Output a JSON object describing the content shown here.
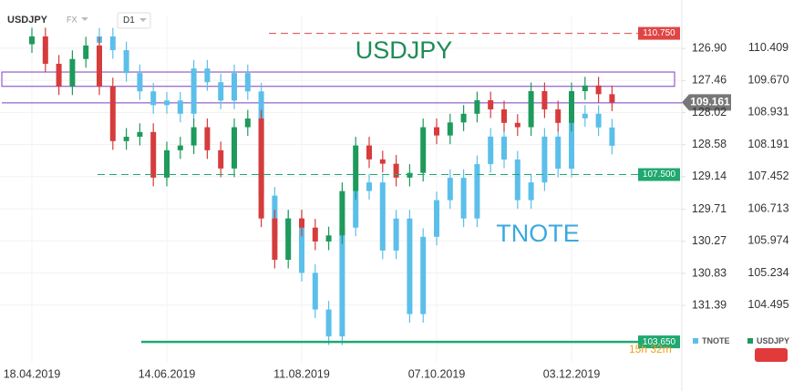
{
  "chart_data": {
    "type": "candlestick",
    "title": "USDJPY",
    "market": "FX",
    "timeframe": "D1",
    "countdown": "15h 32m",
    "categories": [
      "18.04.2019",
      null,
      null,
      null,
      null,
      null,
      null,
      null,
      null,
      null,
      "14.06.2019",
      null,
      null,
      null,
      null,
      null,
      null,
      null,
      null,
      null,
      "11.08.2019",
      null,
      null,
      null,
      null,
      null,
      null,
      null,
      null,
      null,
      "07.10.2019",
      null,
      null,
      null,
      null,
      null,
      null,
      null,
      null,
      null,
      "03.12.2019",
      null,
      null,
      null
    ],
    "ylim": [
      103.17,
      111.14
    ],
    "yticks": [
      110.409,
      {
        "value": 109.67,
        "label": "109.670"
      },
      108.931,
      108.191,
      107.452,
      106.713,
      105.974,
      105.234,
      104.495
    ],
    "y2lim": [
      132.39,
      126.34
    ],
    "y2ticks": [
      {
        "value": 126.9,
        "label": "126.90"
      },
      127.46,
      128.02,
      128.58,
      129.14,
      129.71,
      130.27,
      130.83,
      131.39
    ],
    "grid": true,
    "series": [
      {
        "name": "TNOTE",
        "axis": "y2",
        "color": "#5bbfea",
        "open": [
          null,
          null,
          null,
          null,
          null,
          126.8,
          126.69,
          126.93,
          127.33,
          127.65,
          127.89,
          127.81,
          128.04,
          127.25,
          127.49,
          127.81,
          127.33,
          127.65,
          129.47,
          130.19,
          129.87,
          130.82,
          131.46,
          131.93,
          130.03,
          129.39,
          129.24,
          130.43,
          129.87,
          131.54,
          130.19,
          129.55,
          129.16,
          129.87,
          128.92,
          128.44,
          128.84,
          129.55,
          129.24,
          128.44,
          129.0,
          128.12,
          128.04,
          128.28
        ],
        "high": [
          null,
          null,
          null,
          null,
          null,
          126.95,
          127.08,
          127.48,
          127.8,
          128.04,
          128.04,
          128.19,
          128.19,
          127.64,
          127.96,
          127.96,
          127.8,
          129.62,
          130.34,
          130.34,
          130.97,
          131.61,
          132.08,
          132.08,
          130.18,
          129.54,
          130.58,
          130.58,
          131.69,
          131.69,
          130.34,
          129.7,
          130.02,
          130.02,
          129.07,
          128.99,
          129.7,
          129.7,
          129.39,
          129.15,
          129.15,
          128.27,
          128.43,
          128.75
        ],
        "low": [
          null,
          null,
          null,
          null,
          null,
          126.54,
          126.54,
          126.78,
          127.18,
          127.5,
          127.66,
          127.66,
          127.1,
          127.1,
          127.34,
          127.18,
          127.18,
          127.5,
          129.32,
          129.72,
          129.72,
          130.67,
          131.31,
          129.88,
          129.24,
          129.09,
          129.09,
          129.72,
          129.72,
          130.04,
          129.4,
          129.01,
          129.01,
          128.77,
          128.29,
          128.29,
          128.69,
          129.09,
          128.29,
          128.29,
          127.97,
          127.89,
          127.89,
          128.13
        ],
        "close": [
          null,
          null,
          null,
          null,
          null,
          126.69,
          126.93,
          127.33,
          127.65,
          127.89,
          127.81,
          128.04,
          127.25,
          127.49,
          127.81,
          127.33,
          127.65,
          129.47,
          130.19,
          129.87,
          130.82,
          131.46,
          131.93,
          130.03,
          129.39,
          129.24,
          130.43,
          129.87,
          131.54,
          130.19,
          129.55,
          129.16,
          129.87,
          128.92,
          128.44,
          128.84,
          129.55,
          129.24,
          128.44,
          129.0,
          128.12,
          128.04,
          128.28,
          128.6
        ]
      },
      {
        "name": "USDJPY",
        "color": "#1e9a5c",
        "down_color": "#d63c3c",
        "open": [
          110.5,
          110.68,
          110.05,
          109.53,
          110.16,
          110.47,
          109.53,
          108.27,
          108.37,
          108.48,
          107.43,
          108.06,
          108.17,
          108.59,
          108.06,
          107.64,
          108.59,
          108.79,
          106.49,
          105.54,
          106.49,
          106.28,
          105.96,
          106.1,
          107.12,
          108.17,
          107.85,
          107.75,
          107.43,
          107.54,
          108.59,
          108.4,
          108.7,
          108.9,
          109.21,
          109.0,
          108.69,
          108.59,
          109.42,
          109.0,
          108.69,
          109.42,
          109.55,
          109.35
        ],
        "high": [
          110.88,
          110.88,
          110.25,
          110.36,
          110.67,
          110.67,
          109.73,
          108.57,
          108.68,
          108.68,
          108.26,
          108.37,
          108.79,
          108.79,
          108.26,
          108.79,
          108.99,
          108.99,
          106.69,
          106.69,
          106.69,
          106.48,
          106.3,
          107.32,
          108.37,
          108.37,
          108.05,
          107.95,
          107.74,
          108.79,
          108.79,
          108.9,
          109.1,
          109.41,
          109.41,
          109.2,
          108.89,
          109.62,
          109.62,
          109.2,
          109.62,
          109.75,
          109.75,
          109.55
        ],
        "low": [
          110.3,
          109.85,
          109.33,
          109.33,
          109.96,
          109.33,
          108.07,
          108.07,
          108.17,
          107.23,
          107.23,
          107.86,
          107.97,
          107.86,
          107.44,
          107.44,
          108.39,
          106.29,
          105.34,
          105.34,
          106.08,
          105.76,
          105.76,
          105.9,
          106.92,
          107.65,
          107.55,
          107.23,
          107.23,
          107.34,
          108.2,
          108.2,
          108.5,
          108.7,
          108.8,
          108.49,
          108.39,
          108.39,
          108.8,
          108.49,
          108.49,
          109.22,
          109.15,
          108.96
        ],
        "close": [
          110.68,
          110.05,
          109.53,
          110.16,
          110.47,
          109.53,
          108.27,
          108.37,
          108.48,
          107.43,
          108.06,
          108.17,
          108.59,
          108.06,
          107.64,
          108.59,
          108.79,
          106.49,
          105.54,
          106.49,
          106.28,
          105.96,
          106.1,
          107.12,
          108.17,
          107.85,
          107.75,
          107.43,
          107.54,
          108.59,
          108.4,
          108.7,
          108.9,
          109.21,
          109.0,
          108.69,
          108.59,
          109.42,
          109.0,
          108.69,
          109.42,
          109.55,
          109.35,
          109.16
        ]
      }
    ],
    "annotations": [
      {
        "text": "USDJPY",
        "color": "#1e8c55"
      },
      {
        "text": "TNOTE",
        "color": "#3aa9e0"
      }
    ],
    "levels": [
      {
        "value": 110.75,
        "label": "110.750",
        "color": "#e04545",
        "style": "dashed"
      },
      {
        "value": 107.5,
        "label": "107.500",
        "color": "#1fa870",
        "style": "dashed"
      },
      {
        "value": 103.65,
        "label": "103.650",
        "color": "#1fa870",
        "style": "solid"
      }
    ],
    "zone": [
      109.86,
      109.53
    ],
    "zone_line": 109.15,
    "last_price": {
      "value": 109.161,
      "label": "109.161"
    }
  }
}
